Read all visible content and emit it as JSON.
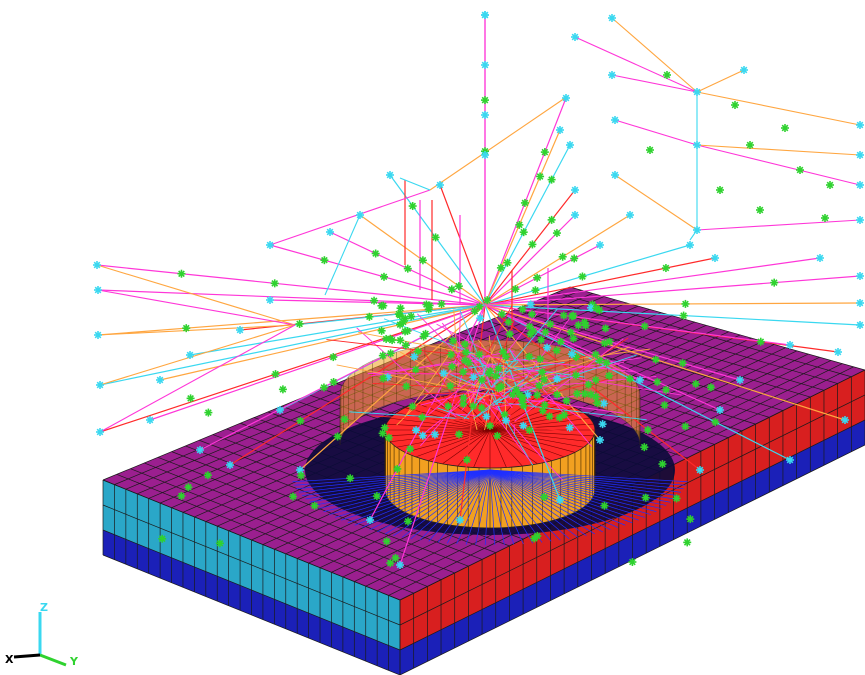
{
  "viewport": {
    "name": "model-graphics-viewport",
    "background": "#ffffff"
  },
  "colors": {
    "slab_top": "#9b1f8f",
    "slab_side_left": "#2aa7c8",
    "slab_side_front": "#d81f1f",
    "slab_bottom": "#1b20b8",
    "mesh_lines": "#1a1a1a",
    "cylinder_top": "#ff2a2a",
    "cylinder_side": "#f2a020",
    "node_marker_green": "#2fd22f",
    "node_marker_cyan": "#3ad8f0",
    "element_line_magenta": "#ff36d8",
    "element_line_orange": "#ffa640",
    "element_line_cyan": "#3ad8f0",
    "element_line_red": "#ff2a2a",
    "element_line_blue": "#2030ff",
    "axis_x": "#000000",
    "axis_y": "#2fd22f",
    "axis_z": "#3ad8f0"
  },
  "triad": {
    "x_label": "X",
    "y_label": "Y",
    "z_label": "Z"
  }
}
